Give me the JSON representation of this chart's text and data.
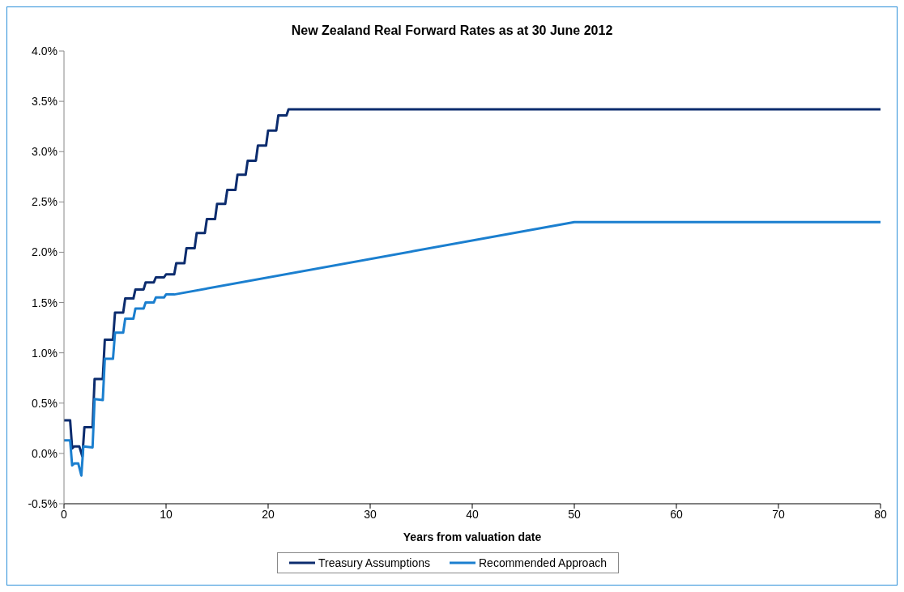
{
  "chart_data": {
    "type": "line",
    "title": "New Zealand Real Forward Rates as at 30 June 2012",
    "xlabel": "Years from valuation date",
    "xlim": [
      0,
      80
    ],
    "xticks": [
      0,
      10,
      20,
      30,
      40,
      50,
      60,
      70,
      80
    ],
    "ylim": [
      -0.5,
      4
    ],
    "yticks": [
      {
        "value": -0.5,
        "label": "-0.5%"
      },
      {
        "value": 0,
        "label": "0.0%"
      },
      {
        "value": 0.5,
        "label": "0.5%"
      },
      {
        "value": 1,
        "label": "1.0%"
      },
      {
        "value": 1.5,
        "label": "1.5%"
      },
      {
        "value": 2,
        "label": "2.0%"
      },
      {
        "value": 2.5,
        "label": "2.5%"
      },
      {
        "value": 3,
        "label": "3.0%"
      },
      {
        "value": 3.5,
        "label": "3.5%"
      },
      {
        "value": 4,
        "label": "4.0%"
      }
    ],
    "grid": false,
    "legend": "bottom",
    "marker": "none",
    "line_style": "solid",
    "series": [
      {
        "name": "Treasury Assumptions",
        "color": "#0c2c6e",
        "x": [
          0,
          0.6,
          0.8,
          1,
          1.5,
          1.8,
          2,
          2.8,
          3,
          3.8,
          4,
          4.8,
          5,
          5.8,
          6,
          6.8,
          7,
          7.8,
          8,
          8.8,
          9,
          9.8,
          10,
          10.8,
          11,
          11.8,
          12,
          12.8,
          13,
          13.8,
          14,
          14.8,
          15,
          15.8,
          16,
          16.8,
          17,
          17.8,
          18,
          18.8,
          19,
          19.8,
          20,
          20.8,
          21,
          21.8,
          22,
          80
        ],
        "values": [
          0.33,
          0.33,
          0.05,
          0.07,
          0.07,
          -0.03,
          0.26,
          0.26,
          0.74,
          0.74,
          1.13,
          1.13,
          1.4,
          1.4,
          1.54,
          1.54,
          1.63,
          1.63,
          1.7,
          1.7,
          1.75,
          1.75,
          1.78,
          1.78,
          1.89,
          1.89,
          2.04,
          2.04,
          2.19,
          2.19,
          2.33,
          2.33,
          2.48,
          2.48,
          2.62,
          2.62,
          2.77,
          2.77,
          2.91,
          2.91,
          3.06,
          3.06,
          3.21,
          3.21,
          3.36,
          3.36,
          3.42,
          3.42
        ]
      },
      {
        "name": "Recommended Approach",
        "color": "#1b7fcf",
        "x": [
          0,
          0.6,
          0.8,
          1,
          1.4,
          1.7,
          1.9,
          2.8,
          3,
          3.8,
          4,
          4.8,
          5,
          5.8,
          6,
          6.8,
          7,
          7.8,
          8,
          8.8,
          9,
          9.8,
          10,
          10.8,
          50,
          80
        ],
        "values": [
          0.13,
          0.13,
          -0.12,
          -0.1,
          -0.1,
          -0.22,
          0.07,
          0.06,
          0.54,
          0.53,
          0.94,
          0.94,
          1.2,
          1.2,
          1.34,
          1.34,
          1.44,
          1.44,
          1.5,
          1.5,
          1.55,
          1.55,
          1.58,
          1.58,
          2.3,
          2.3
        ]
      }
    ]
  }
}
